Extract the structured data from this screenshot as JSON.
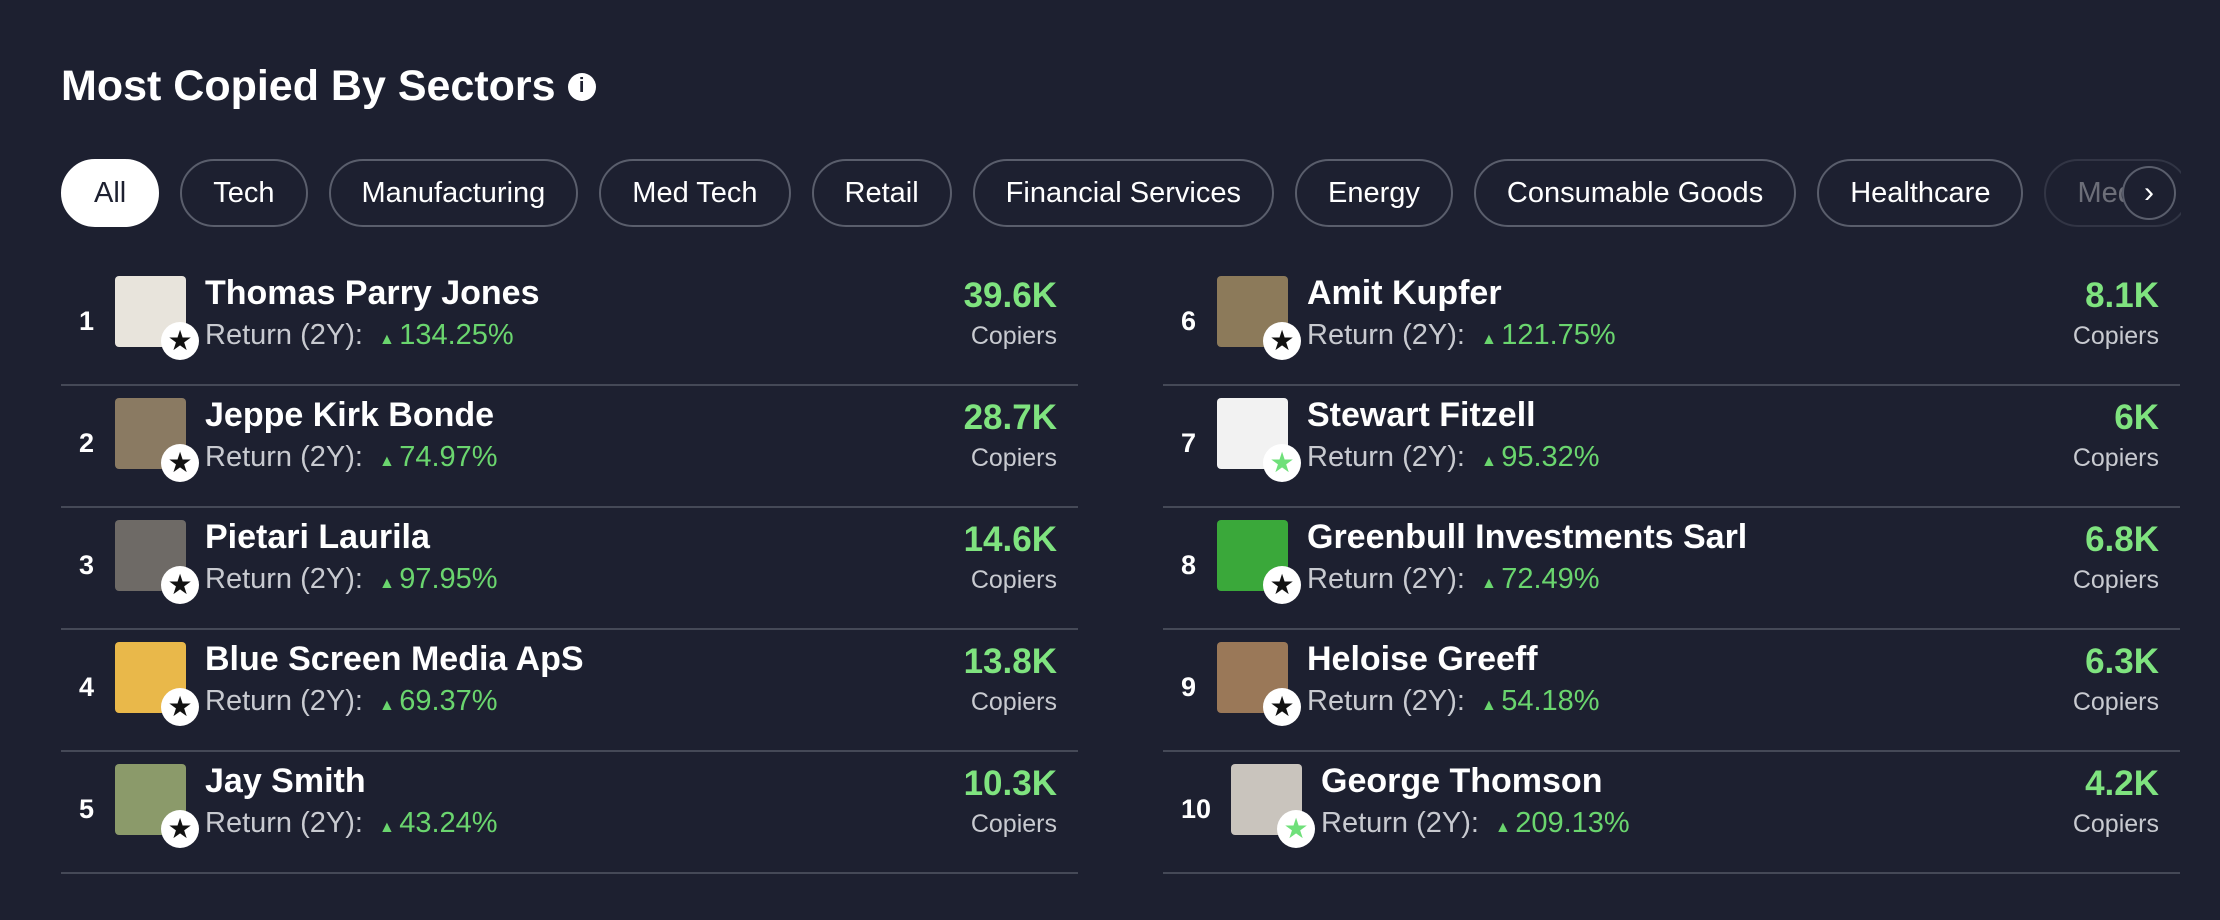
{
  "header": {
    "title": "Most Copied By Sectors"
  },
  "filters": [
    "All",
    "Tech",
    "Manufacturing",
    "Med Tech",
    "Retail",
    "Financial Services",
    "Energy",
    "Consumable Goods",
    "Healthcare",
    "Media"
  ],
  "return_label": "Return (2Y):",
  "copiers_label": "Copiers",
  "traders": [
    {
      "rank": "1",
      "name": "Thomas Parry Jones",
      "return": "134.25%",
      "copiers": "39.6K",
      "avatar": "#e8e4dc",
      "badge": "dark"
    },
    {
      "rank": "2",
      "name": "Jeppe Kirk Bonde",
      "return": "74.97%",
      "copiers": "28.7K",
      "avatar": "#8a7a62",
      "badge": "dark"
    },
    {
      "rank": "3",
      "name": "Pietari Laurila",
      "return": "97.95%",
      "copiers": "14.6K",
      "avatar": "#6e6a66",
      "badge": "dark"
    },
    {
      "rank": "4",
      "name": "Blue Screen Media ApS",
      "return": "69.37%",
      "copiers": "13.8K",
      "avatar": "#e9b84a",
      "badge": "dark"
    },
    {
      "rank": "5",
      "name": "Jay Smith",
      "return": "43.24%",
      "copiers": "10.3K",
      "avatar": "#8b9a6a",
      "badge": "dark"
    },
    {
      "rank": "6",
      "name": "Amit Kupfer",
      "return": "121.75%",
      "copiers": "8.1K",
      "avatar": "#8c7a5a",
      "badge": "dark"
    },
    {
      "rank": "7",
      "name": "Stewart Fitzell",
      "return": "95.32%",
      "copiers": "6K",
      "avatar": "#f2f2f2",
      "badge": "green"
    },
    {
      "rank": "8",
      "name": "Greenbull Investments Sarl",
      "return": "72.49%",
      "copiers": "6.8K",
      "avatar": "#3aa83a",
      "badge": "dark"
    },
    {
      "rank": "9",
      "name": "Heloise Greeff",
      "return": "54.18%",
      "copiers": "6.3K",
      "avatar": "#9a7858",
      "badge": "dark"
    },
    {
      "rank": "10",
      "name": "George Thomson",
      "return": "209.13%",
      "copiers": "4.2K",
      "avatar": "#c9c4bd",
      "badge": "green"
    }
  ]
}
